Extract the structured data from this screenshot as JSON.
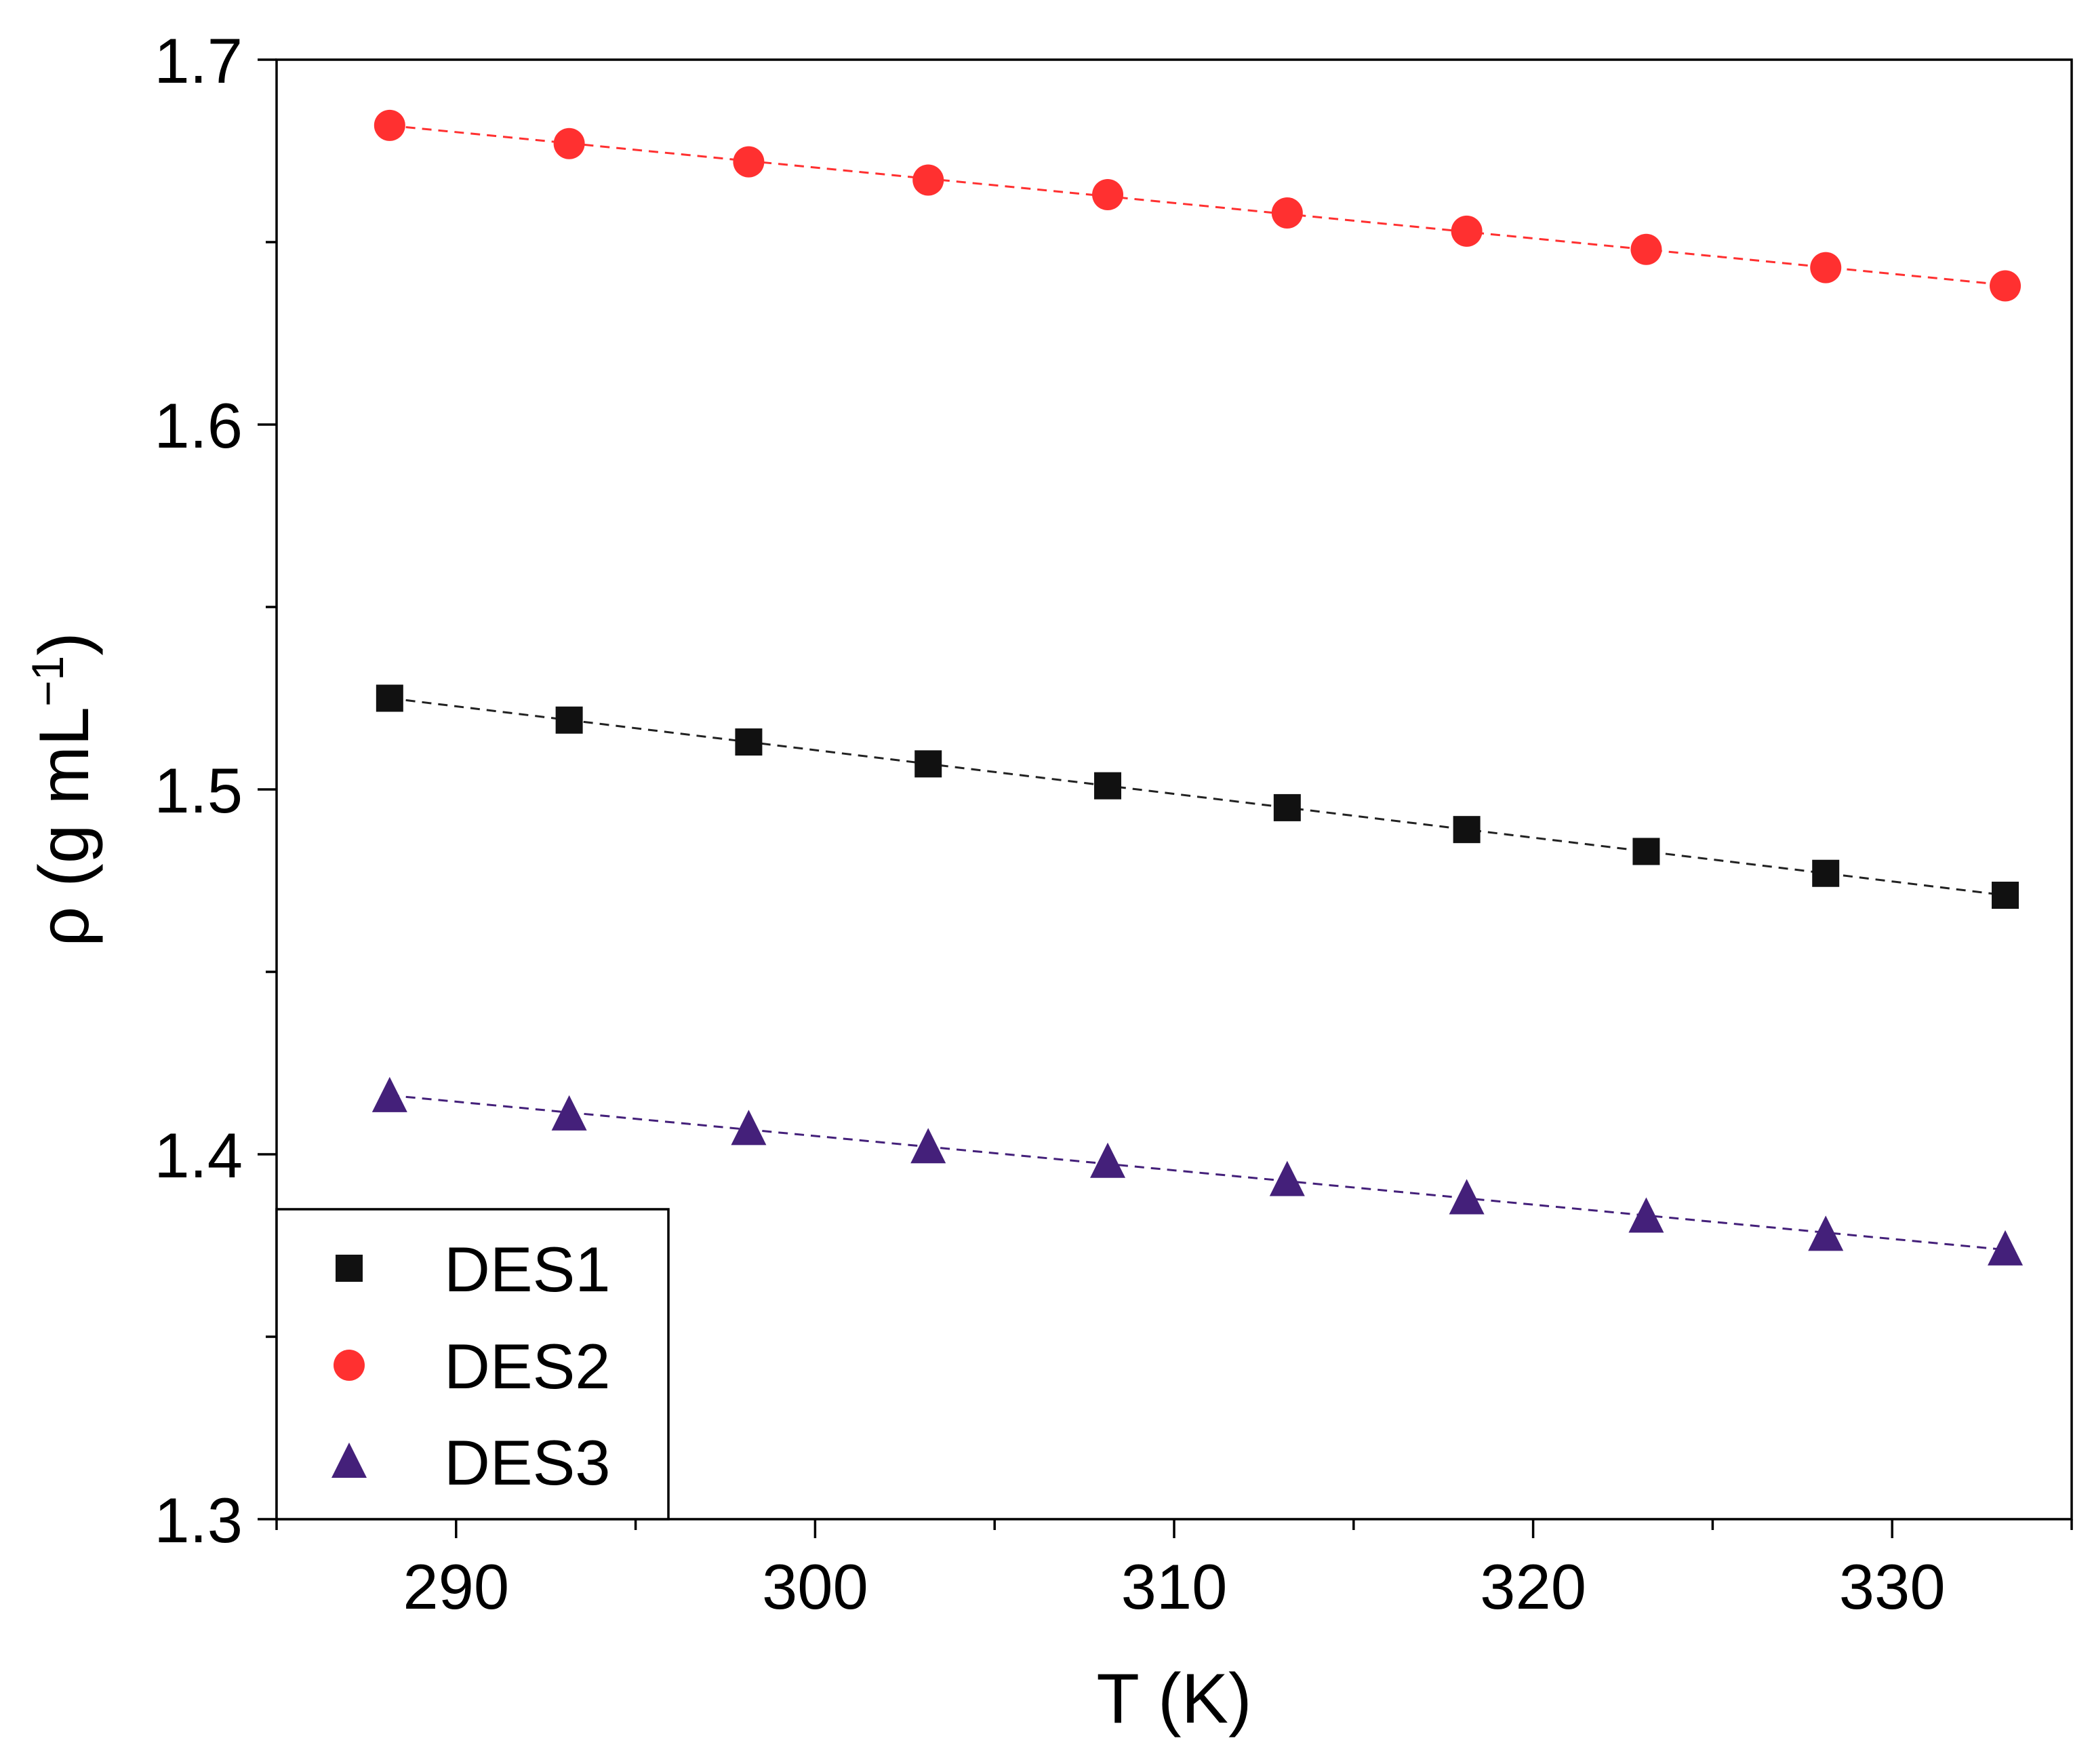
{
  "chart_data": {
    "type": "scatter",
    "title": "",
    "xlabel": "T (K)",
    "ylabel_parts": {
      "main": "ρ (g mL",
      "sup": "−1",
      "close": ")"
    },
    "xlim": [
      285,
      335
    ],
    "ylim": [
      1.3,
      1.7
    ],
    "x_ticks": [
      290,
      300,
      310,
      320,
      330
    ],
    "x_tick_labels": [
      "290",
      "300",
      "310",
      "320",
      "330"
    ],
    "x_minor_ticks": [
      285,
      295,
      305,
      315,
      325,
      335
    ],
    "y_ticks": [
      1.3,
      1.4,
      1.5,
      1.6,
      1.7
    ],
    "y_tick_labels": [
      "1.3",
      "1.4",
      "1.5",
      "1.6",
      "1.7"
    ],
    "y_minor_ticks": [
      1.35,
      1.45,
      1.55,
      1.65
    ],
    "grid": false,
    "legend_position": "bottom-left",
    "x": [
      288.15,
      293.15,
      298.15,
      303.15,
      308.15,
      313.15,
      318.15,
      323.15,
      328.15,
      333.15
    ],
    "series": [
      {
        "name": "DES1",
        "marker": "square",
        "color": "#111111",
        "line_color": "#222222",
        "values": [
          1.525,
          1.519,
          1.513,
          1.507,
          1.501,
          1.495,
          1.489,
          1.483,
          1.477,
          1.471
        ]
      },
      {
        "name": "DES2",
        "marker": "circle",
        "color": "#ff3030",
        "line_color": "#ff3030",
        "values": [
          1.682,
          1.677,
          1.672,
          1.667,
          1.663,
          1.658,
          1.653,
          1.648,
          1.643,
          1.638
        ]
      },
      {
        "name": "DES3",
        "marker": "triangle",
        "color": "#44207a",
        "line_color": "#44207a",
        "values": [
          1.416,
          1.411,
          1.407,
          1.402,
          1.398,
          1.393,
          1.388,
          1.383,
          1.378,
          1.374
        ]
      }
    ]
  }
}
